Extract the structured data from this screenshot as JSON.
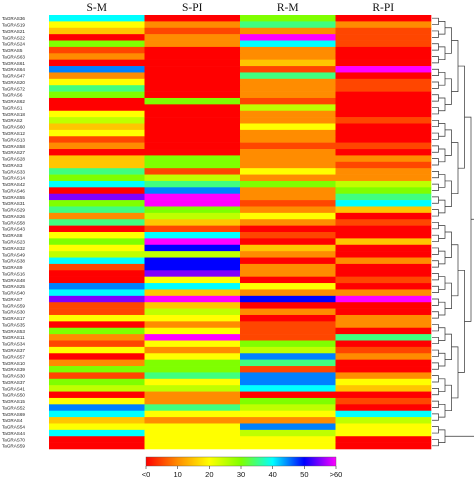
{
  "chart_data": {
    "type": "heatmap",
    "columns": [
      "S-M",
      "S-PI",
      "R-M",
      "R-PI"
    ],
    "rows": [
      "TaGRAS36",
      "TaGRAS19",
      "TaGRAS21",
      "TaGRAS22",
      "TaGRAS24",
      "TaGRAS5",
      "TaGRAS63",
      "TaGRAS61",
      "TaGRAS64",
      "TaGRAS47",
      "TaGRAS20",
      "TaGRAS72",
      "TaGRAS6",
      "TaGRAS62",
      "TaGRAS1",
      "TaGRAS18",
      "TaGRAS2",
      "TaGRAS60",
      "TaGRAS12",
      "TaGRAS13",
      "TaGRAS58",
      "TaGRAS27",
      "TaGRAS28",
      "TaGRAS3",
      "TaGRAS33",
      "TaGRAS14",
      "TaGRAS42",
      "TaGRAS46",
      "TaGRAS55",
      "TaGRAS31",
      "TaGRAS29",
      "TaGRAS26",
      "TaGRAS58",
      "TaGRAS43",
      "TaGRAS8",
      "TaGRAS23",
      "TaGRAS32",
      "TaGRAS49",
      "TaGRAS38",
      "TaGRAS9",
      "TaGRAS16",
      "TaGRAS48",
      "TaGRAS25",
      "TaGRAS40",
      "TaGRAS7",
      "TaGRAS59",
      "TaGRAS30",
      "TaGRAS17",
      "TaGRAS35",
      "TaGRAS53",
      "TaGRAS11",
      "TaGRAS34",
      "TaGRAS37",
      "TaGRAS57",
      "TaGRAS10",
      "TaGRAS39",
      "TaGRAS30",
      "TaGRAS37",
      "TaGRAS41",
      "TaGRAS50",
      "TaGRAS15",
      "TaGRAS52",
      "TaGRAS69",
      "TaGRAS4",
      "TaGRAS54",
      "TaGRAS44",
      "TaGRAS70",
      "TaGRAS59"
    ],
    "values": [
      [
        40,
        0,
        30,
        0
      ],
      [
        20,
        10,
        35,
        10
      ],
      [
        15,
        5,
        10,
        5
      ],
      [
        0,
        10,
        60,
        5
      ],
      [
        30,
        10,
        40,
        5
      ],
      [
        5,
        0,
        10,
        0
      ],
      [
        10,
        0,
        10,
        0
      ],
      [
        0,
        0,
        15,
        0
      ],
      [
        45,
        0,
        5,
        60
      ],
      [
        10,
        0,
        35,
        0
      ],
      [
        20,
        0,
        10,
        5
      ],
      [
        35,
        0,
        10,
        5
      ],
      [
        30,
        0,
        10,
        0
      ],
      [
        0,
        30,
        5,
        0
      ],
      [
        0,
        0,
        25,
        0
      ],
      [
        20,
        0,
        10,
        0
      ],
      [
        25,
        0,
        10,
        5
      ],
      [
        15,
        0,
        20,
        0
      ],
      [
        20,
        0,
        10,
        0
      ],
      [
        5,
        0,
        10,
        0
      ],
      [
        10,
        0,
        5,
        5
      ],
      [
        0,
        0,
        10,
        0
      ],
      [
        15,
        30,
        10,
        10
      ],
      [
        15,
        30,
        10,
        5
      ],
      [
        35,
        5,
        20,
        10
      ],
      [
        30,
        25,
        10,
        10
      ],
      [
        40,
        35,
        30,
        25
      ],
      [
        0,
        45,
        10,
        30
      ],
      [
        55,
        60,
        10,
        35
      ],
      [
        30,
        60,
        5,
        40
      ],
      [
        35,
        30,
        10,
        15
      ],
      [
        10,
        25,
        20,
        0
      ],
      [
        35,
        15,
        10,
        5
      ],
      [
        0,
        5,
        0,
        0
      ],
      [
        20,
        40,
        5,
        0
      ],
      [
        30,
        60,
        0,
        15
      ],
      [
        20,
        50,
        15,
        0
      ],
      [
        25,
        25,
        10,
        0
      ],
      [
        40,
        50,
        0,
        10
      ],
      [
        5,
        50,
        10,
        0
      ],
      [
        0,
        55,
        10,
        0
      ],
      [
        0,
        20,
        0,
        5
      ],
      [
        45,
        40,
        20,
        0
      ],
      [
        40,
        15,
        10,
        10
      ],
      [
        55,
        60,
        50,
        60
      ],
      [
        5,
        15,
        0,
        0
      ],
      [
        5,
        25,
        10,
        0
      ],
      [
        20,
        20,
        0,
        10
      ],
      [
        0,
        10,
        5,
        10
      ],
      [
        30,
        20,
        5,
        0
      ],
      [
        10,
        60,
        5,
        35
      ],
      [
        5,
        20,
        30,
        0
      ],
      [
        20,
        10,
        25,
        5
      ],
      [
        0,
        20,
        45,
        10
      ],
      [
        10,
        30,
        35,
        0
      ],
      [
        30,
        30,
        5,
        0
      ],
      [
        5,
        35,
        45,
        10
      ],
      [
        30,
        20,
        45,
        20
      ],
      [
        25,
        25,
        40,
        15
      ],
      [
        0,
        10,
        0,
        0
      ],
      [
        20,
        10,
        30,
        5
      ],
      [
        45,
        35,
        25,
        0
      ],
      [
        40,
        20,
        20,
        40
      ],
      [
        15,
        10,
        10,
        25
      ],
      [
        20,
        20,
        45,
        20
      ],
      [
        40,
        20,
        25,
        20
      ],
      [
        0,
        20,
        20,
        0
      ],
      [
        0,
        20,
        20,
        0
      ]
    ],
    "legend": {
      "ticks": [
        "<0",
        "10",
        "20",
        "30",
        "40",
        "50",
        ">60"
      ],
      "min": 0,
      "max": 60,
      "color_stops": [
        "#ff0000",
        "#ff8c00",
        "#ffff00",
        "#7fff00",
        "#00ffff",
        "#0000ff",
        "#ff00ff"
      ]
    },
    "dendrogram": "right",
    "grid": false
  }
}
